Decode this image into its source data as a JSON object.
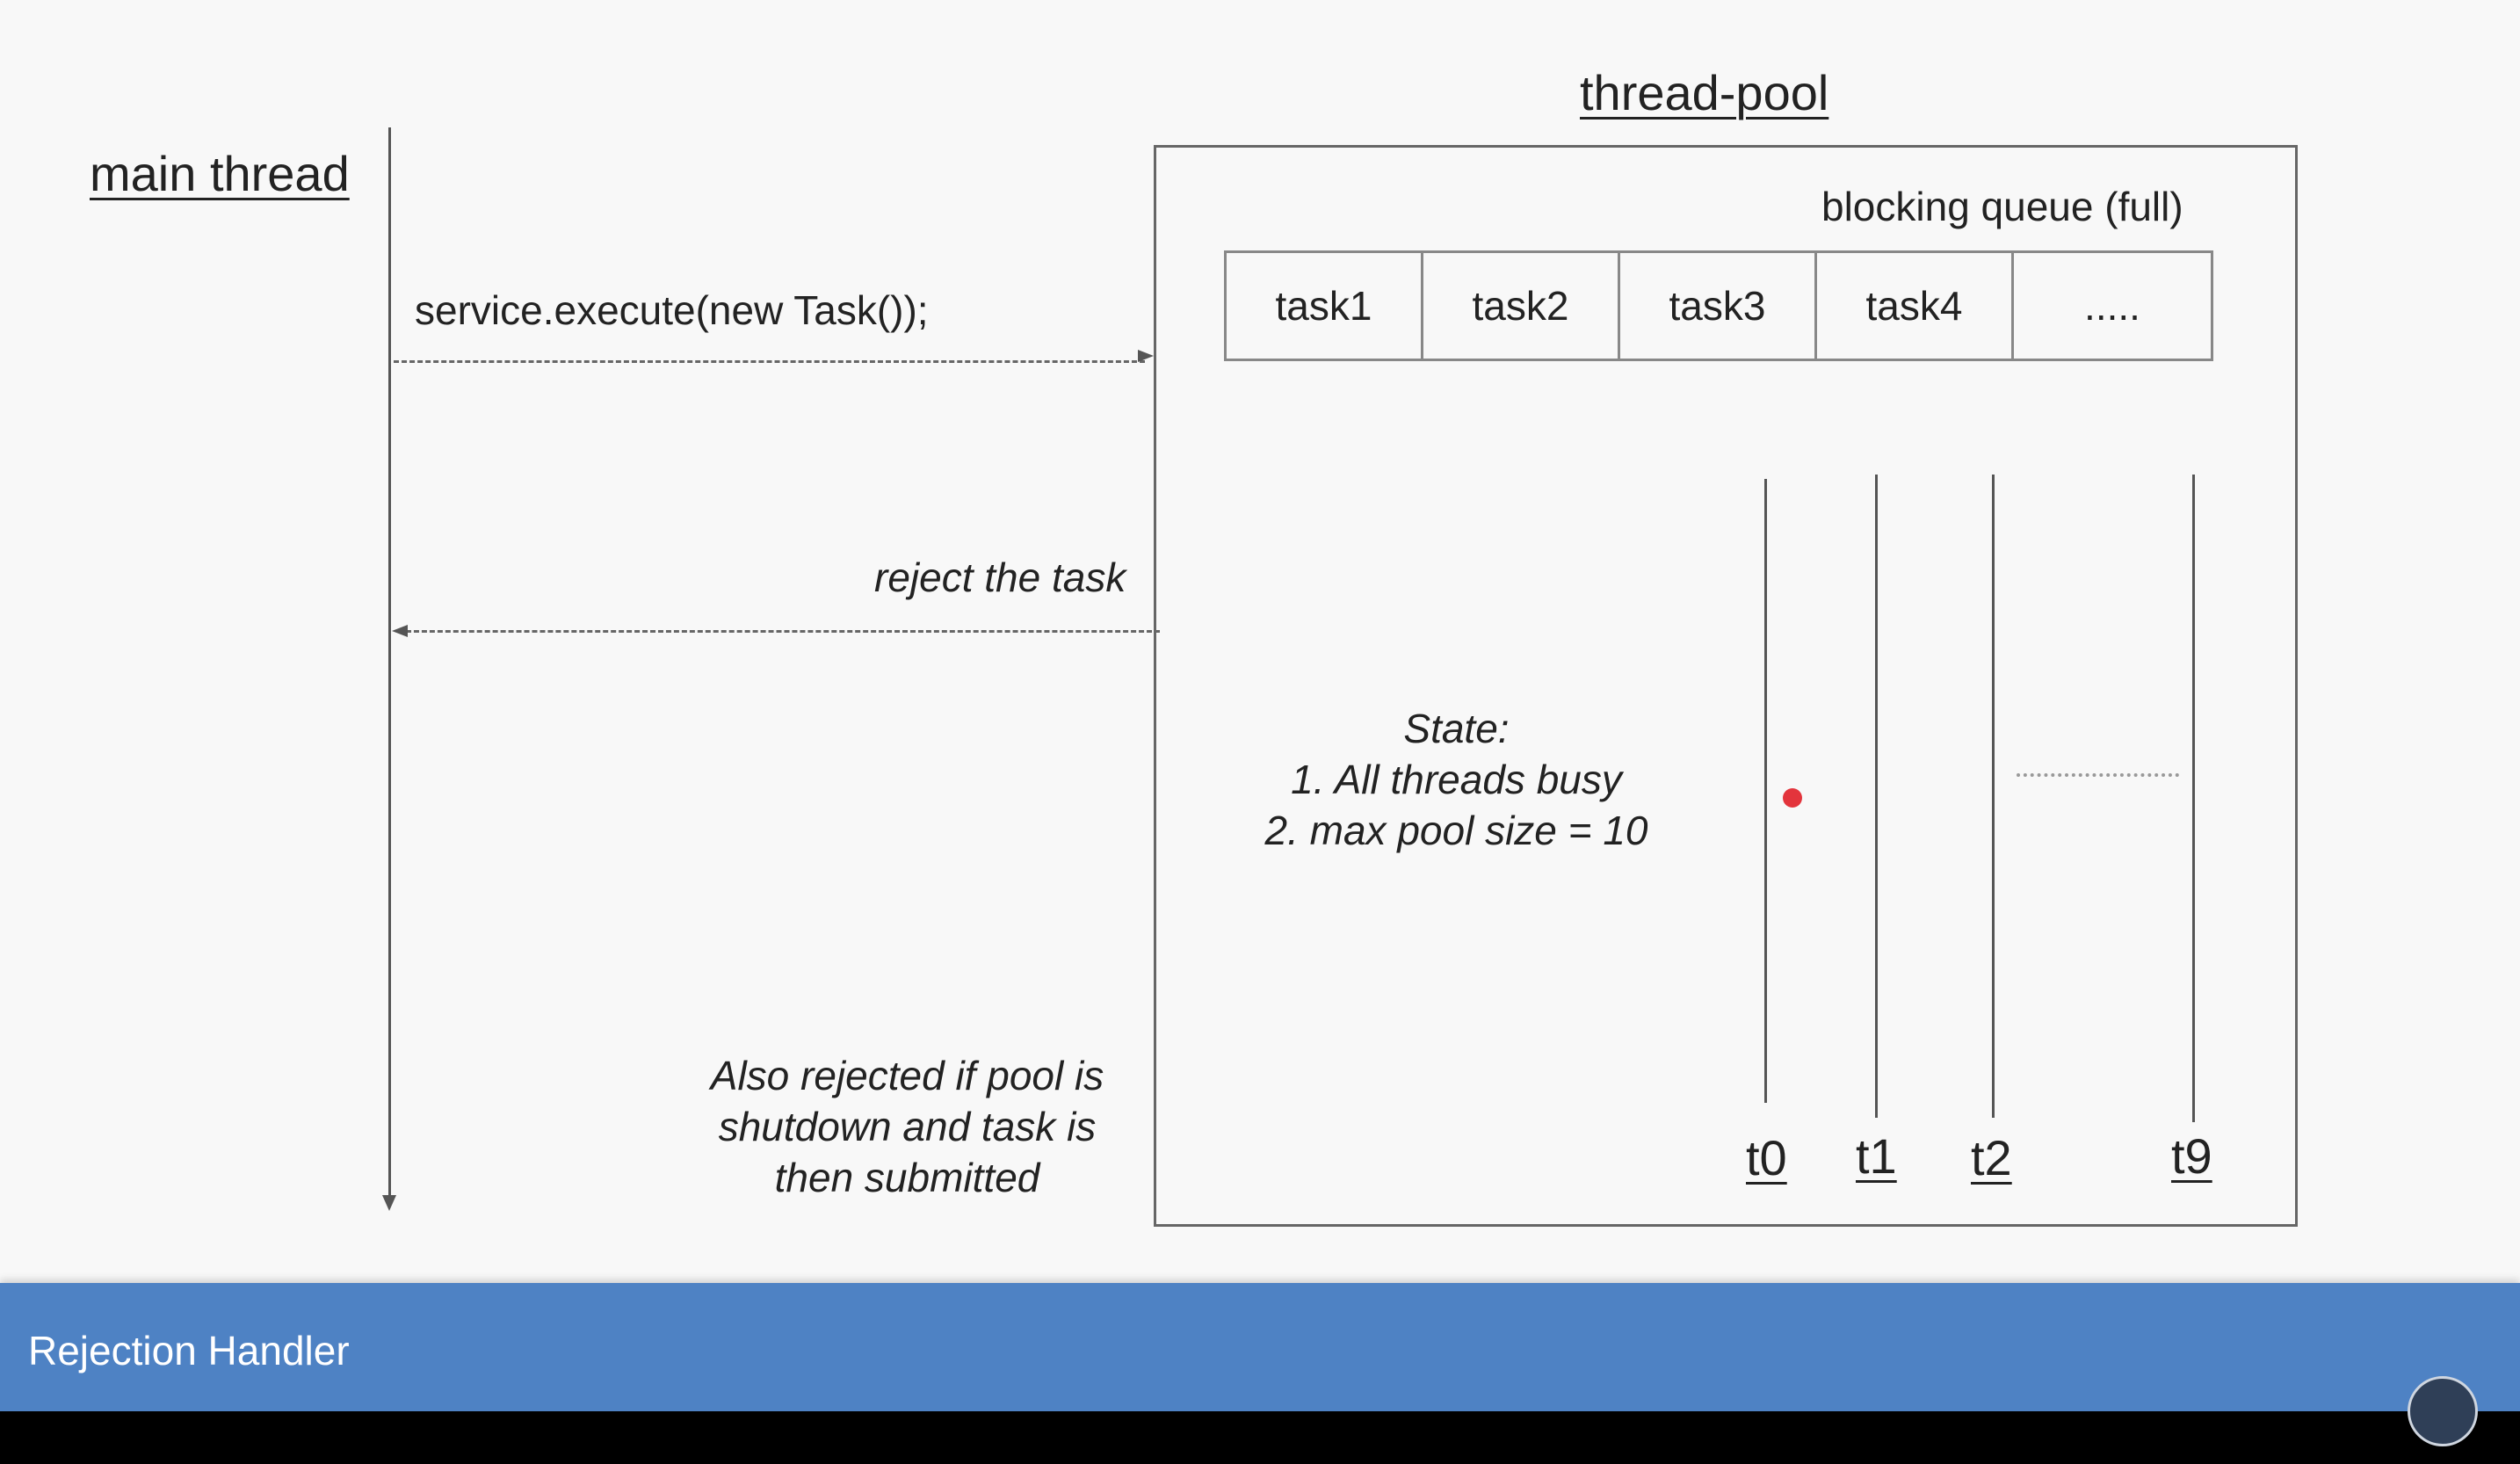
{
  "main_thread": {
    "title": "main thread"
  },
  "thread_pool": {
    "title": "thread-pool",
    "queue_label": "blocking queue (full)",
    "queue_cells": [
      "task1",
      "task2",
      "task3",
      "task4",
      "....."
    ],
    "state_lines": [
      "State:",
      "1. All threads busy",
      "2. max pool size = 10"
    ],
    "threads": [
      "t0",
      "t1",
      "t2",
      "t9"
    ]
  },
  "arrows": {
    "execute_label": "service.execute(new Task());",
    "reject_label": "reject the task"
  },
  "note_lines": [
    "Also rejected if pool is",
    "shutdown and task is",
    "then submitted"
  ],
  "footer": {
    "title": "Rejection Handler"
  },
  "colors": {
    "footer_bg": "#4e82c4",
    "dot": "#e3343c"
  }
}
